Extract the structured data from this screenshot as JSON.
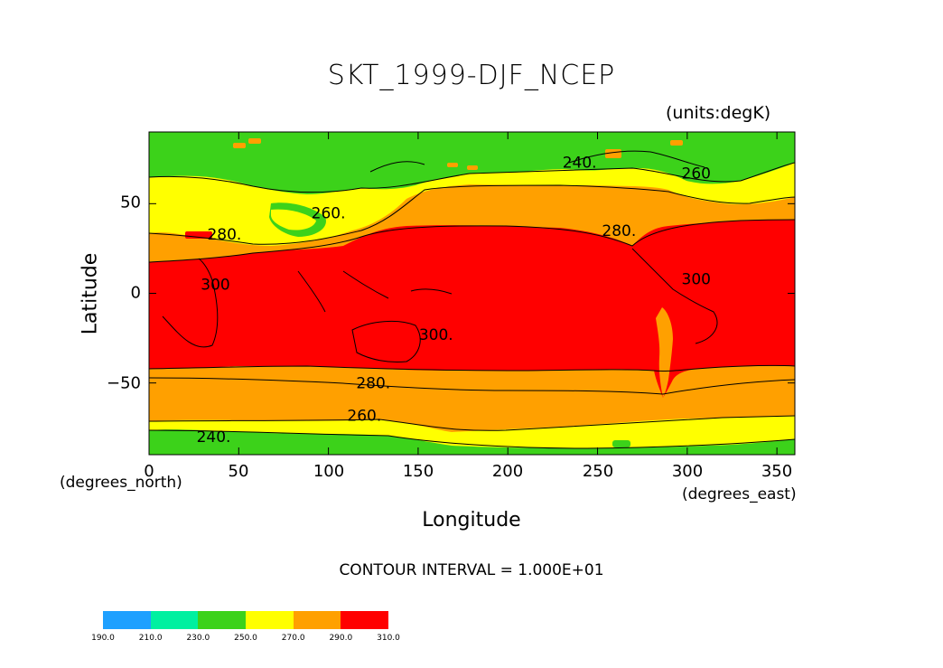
{
  "title": "SKT_1999-DJF_NCEP",
  "units": "(units:degK)",
  "x_axis": {
    "label": "Longitude",
    "unit": "(degrees_east)",
    "ticks": [
      "0",
      "50",
      "100",
      "150",
      "200",
      "250",
      "300",
      "350"
    ]
  },
  "y_axis": {
    "label": "Latitude",
    "unit": "(degrees_north)",
    "ticks": [
      "50",
      "0",
      "−50"
    ]
  },
  "contour_interval_text": "CONTOUR INTERVAL = 1.000E+01",
  "contour_labels": [
    {
      "text": "240.",
      "lon": 240,
      "lat": 73
    },
    {
      "text": "260",
      "lon": 305,
      "lat": 67
    },
    {
      "text": "260.",
      "lon": 100,
      "lat": 45
    },
    {
      "text": "280.",
      "lon": 42,
      "lat": 33
    },
    {
      "text": "280.",
      "lon": 262,
      "lat": 35
    },
    {
      "text": "300",
      "lon": 305,
      "lat": 8
    },
    {
      "text": "300",
      "lon": 37,
      "lat": 5
    },
    {
      "text": "300.",
      "lon": 160,
      "lat": -23
    },
    {
      "text": "280.",
      "lon": 125,
      "lat": -50
    },
    {
      "text": "260.",
      "lon": 120,
      "lat": -68
    },
    {
      "text": "240.",
      "lon": 36,
      "lat": -80
    }
  ],
  "colorbar": {
    "colors": [
      "#1ea0ff",
      "#00f0a0",
      "#3cd21a",
      "#ffff00",
      "#ffa000",
      "#ff0000"
    ],
    "labels": [
      "190.0",
      "210.0",
      "230.0",
      "250.0",
      "270.0",
      "290.0",
      "310.0"
    ]
  }
}
